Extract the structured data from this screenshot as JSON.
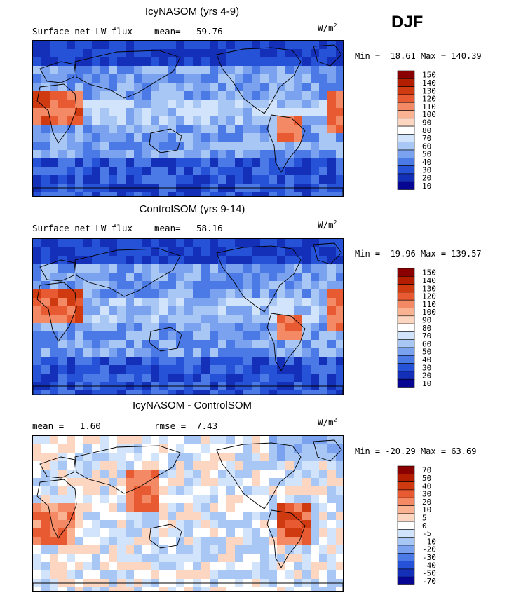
{
  "season": "DJF",
  "units": "W/m",
  "units_sup": "2",
  "chart_data": [
    {
      "type": "heatmap",
      "title": "IcyNASOM (yrs 4-9)",
      "subtitle": "Surface net LW flux",
      "stat_label": "mean=",
      "stat_value": "59.76",
      "min_label": "Min =",
      "min": "18.61",
      "max_label": "Max =",
      "max": "140.39",
      "levels": [
        "150",
        "140",
        "130",
        "120",
        "110",
        "100",
        "90",
        "80",
        "70",
        "60",
        "50",
        "40",
        "30",
        "20",
        "10"
      ],
      "colors": [
        "#8a0000",
        "#b31e00",
        "#cf3a10",
        "#e85a32",
        "#f48a65",
        "#f9b393",
        "#fdd6c2",
        "#ffffff",
        "#d2e4fb",
        "#a9c7f5",
        "#7aa2ef",
        "#4b7ae6",
        "#2652d8",
        "#1530b8",
        "#060693"
      ]
    },
    {
      "type": "heatmap",
      "title": "ControlSOM (yrs 9-14)",
      "subtitle": "Surface net LW flux",
      "stat_label": "mean=",
      "stat_value": "58.16",
      "min_label": "Min =",
      "min": "19.96",
      "max_label": "Max =",
      "max": "139.57",
      "levels": [
        "150",
        "140",
        "130",
        "120",
        "110",
        "100",
        "90",
        "80",
        "70",
        "60",
        "50",
        "40",
        "30",
        "20",
        "10"
      ],
      "colors": [
        "#8a0000",
        "#b31e00",
        "#cf3a10",
        "#e85a32",
        "#f48a65",
        "#f9b393",
        "#fdd6c2",
        "#ffffff",
        "#d2e4fb",
        "#a9c7f5",
        "#7aa2ef",
        "#4b7ae6",
        "#2652d8",
        "#1530b8",
        "#060693"
      ]
    },
    {
      "type": "heatmap",
      "title": "IcyNASOM - ControlSOM",
      "subtitle": "mean =   1.60",
      "stat_label": "rmse =",
      "stat_value": "7.43",
      "min_label": "Min =",
      "min": "-20.29",
      "max_label": "Max =",
      "max": "63.69",
      "levels": [
        "70",
        "50",
        "40",
        "30",
        "20",
        "10",
        "5",
        "0",
        "-5",
        "-10",
        "-20",
        "-30",
        "-40",
        "-50",
        "-70"
      ],
      "colors": [
        "#8a0000",
        "#b31e00",
        "#cf3a10",
        "#e85a32",
        "#f48a65",
        "#f9b393",
        "#fdd6c2",
        "#ffffff",
        "#d2e4fb",
        "#a9c7f5",
        "#7aa2ef",
        "#4b7ae6",
        "#2652d8",
        "#1530b8",
        "#060693"
      ]
    }
  ]
}
